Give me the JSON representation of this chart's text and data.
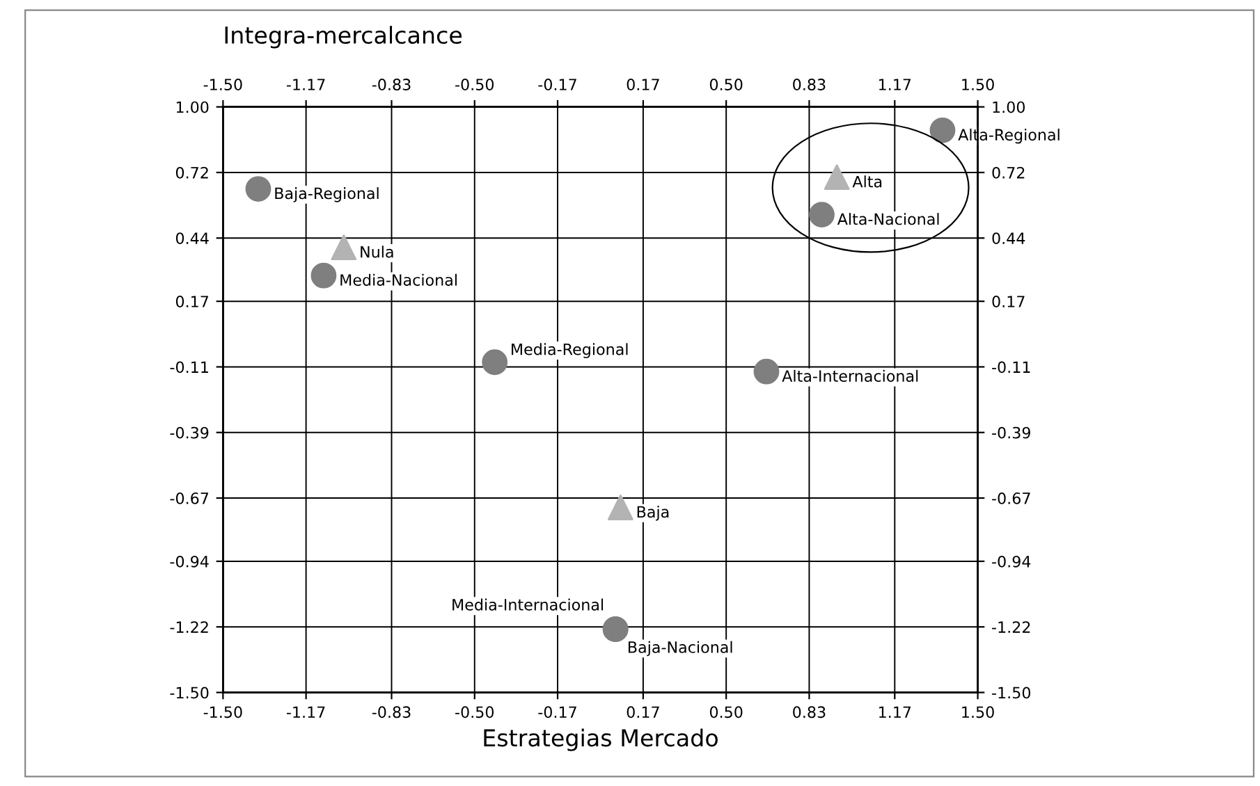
{
  "chart_data": {
    "type": "scatter",
    "xlabel": "Estrategias Mercado",
    "ylabel": "Integra-mercalcance",
    "xlim": [
      -1.5,
      1.5
    ],
    "ylim": [
      -1.5,
      1.0
    ],
    "x2lim": [
      -1.5,
      1.5
    ],
    "y2lim": [
      -1.5,
      1.0
    ],
    "xticks": [
      {
        "value": -1.5,
        "label": "-1.50"
      },
      {
        "value": -1.17,
        "label": "-1.17"
      },
      {
        "value": -0.83,
        "label": "-0.83"
      },
      {
        "value": -0.5,
        "label": "-0.50"
      },
      {
        "value": -0.17,
        "label": "-0.17"
      },
      {
        "value": 0.17,
        "label": "0.17"
      },
      {
        "value": 0.5,
        "label": "0.50"
      },
      {
        "value": 0.83,
        "label": "0.83"
      },
      {
        "value": 1.17,
        "label": "1.17"
      },
      {
        "value": 1.5,
        "label": "1.50"
      }
    ],
    "x2ticks": [
      {
        "value": -1.5,
        "label": "-1.50"
      },
      {
        "value": -1.17,
        "label": "-1.17"
      },
      {
        "value": -0.83,
        "label": "-0.83"
      },
      {
        "value": -0.5,
        "label": "-0.50"
      },
      {
        "value": -0.17,
        "label": "-0.17"
      },
      {
        "value": 0.17,
        "label": "0.17"
      },
      {
        "value": 0.5,
        "label": "0.50"
      },
      {
        "value": 0.83,
        "label": "0.83"
      },
      {
        "value": 1.17,
        "label": "1.17"
      },
      {
        "value": 1.5,
        "label": "1.50"
      }
    ],
    "yticks": [
      {
        "value": -1.5,
        "label": "-1.50"
      },
      {
        "value": -1.22,
        "label": "-1.22"
      },
      {
        "value": -0.94,
        "label": "-0.94"
      },
      {
        "value": -0.67,
        "label": "-0.67"
      },
      {
        "value": -0.39,
        "label": "-0.39"
      },
      {
        "value": -0.11,
        "label": "-0.11"
      },
      {
        "value": 0.17,
        "label": "0.17"
      },
      {
        "value": 0.44,
        "label": "0.44"
      },
      {
        "value": 0.72,
        "label": "0.72"
      },
      {
        "value": 1.0,
        "label": "1.00"
      }
    ],
    "y2ticks": [
      {
        "value": -1.5,
        "label": "-1.50"
      },
      {
        "value": -1.22,
        "label": "-1.22"
      },
      {
        "value": -0.94,
        "label": "-0.94"
      },
      {
        "value": -0.67,
        "label": "-0.67"
      },
      {
        "value": -0.39,
        "label": "-0.39"
      },
      {
        "value": -0.11,
        "label": "-0.11"
      },
      {
        "value": 0.17,
        "label": "0.17"
      },
      {
        "value": 0.44,
        "label": "0.44"
      },
      {
        "value": 0.72,
        "label": "0.72"
      },
      {
        "value": 1.0,
        "label": "1.00"
      }
    ],
    "grid": true,
    "legend": false,
    "series": [
      {
        "color": "#7f7f7f",
        "marker": "circle",
        "x": [
          1.36,
          -1.36,
          0.88,
          -1.1,
          -0.42,
          0.66,
          0.06,
          0.06
        ],
        "values": [
          0.9,
          0.65,
          0.54,
          0.28,
          -0.09,
          -0.13,
          -1.23,
          -1.23
        ],
        "value_labels": [
          "Alta-Regional",
          "Baja-Regional",
          "Alta-Nacional",
          "Media-Nacional",
          "Media-Regional",
          "Alta-Internacional",
          "Baja-Nacional",
          "Media-Internacional"
        ]
      },
      {
        "color": "#b3b3b3",
        "marker": "triangle",
        "x": [
          0.94,
          -1.02,
          0.08
        ],
        "values": [
          0.7,
          0.4,
          -0.71
        ],
        "value_labels": [
          "Alta",
          "Nula",
          "Baja"
        ]
      }
    ]
  }
}
